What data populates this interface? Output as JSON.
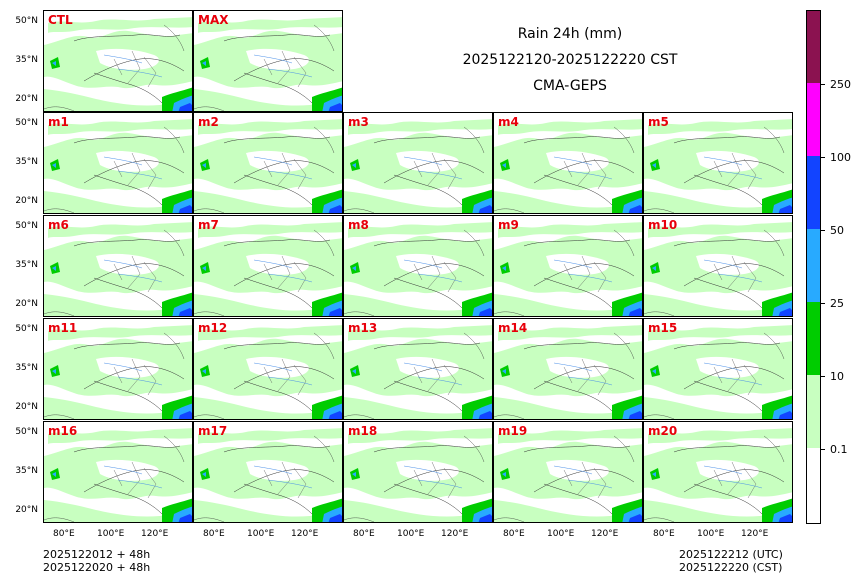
{
  "header": {
    "title_line1": "Rain 24h (mm)",
    "title_line2": "2025122120-2025122220 CST",
    "title_line3": "CMA-GEPS"
  },
  "panels": {
    "row0": [
      "CTL",
      "MAX"
    ],
    "row1": [
      "m1",
      "m2",
      "m3",
      "m4",
      "m5"
    ],
    "row2": [
      "m6",
      "m7",
      "m8",
      "m9",
      "m10"
    ],
    "row3": [
      "m11",
      "m12",
      "m13",
      "m14",
      "m15"
    ],
    "row4": [
      "m16",
      "m17",
      "m18",
      "m19",
      "m20"
    ]
  },
  "axes": {
    "y_ticks": [
      "50°N",
      "35°N",
      "20°N"
    ],
    "x_ticks": [
      "80°E",
      "100°E",
      "120°E"
    ]
  },
  "footer": {
    "left_line1": "2025122012 + 48h",
    "left_line2": "2025122020 + 48h",
    "right_line1": "2025122212 (UTC)",
    "right_line2": "2025122220 (CST)"
  },
  "colorbar": {
    "levels": [
      "0.1",
      "10",
      "25",
      "50",
      "100",
      "250"
    ],
    "colors": [
      "#ffffff",
      "#c8ffc0",
      "#00cc00",
      "#28aaff",
      "#1244ff",
      "#ff00ff",
      "#8b1250"
    ]
  }
}
